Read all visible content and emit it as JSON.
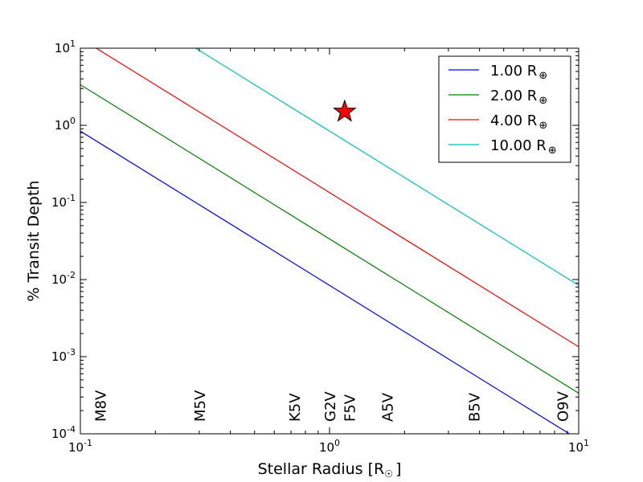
{
  "chart_data": {
    "type": "line",
    "xlabel": "Stellar Radius [R",
    "xlabel_sub": "☉",
    "xlabel_end": "]",
    "ylabel": "% Transit Depth",
    "xscale": "log",
    "yscale": "log",
    "xlim": [
      0.1,
      10
    ],
    "ylim": [
      0.0001,
      10
    ],
    "x_ticks": [
      {
        "value": 0.1,
        "base": "10",
        "exp": "-1"
      },
      {
        "value": 1,
        "base": "10",
        "exp": "0"
      },
      {
        "value": 10,
        "base": "10",
        "exp": "1"
      }
    ],
    "y_ticks": [
      {
        "value": 0.0001,
        "base": "10",
        "exp": "-4"
      },
      {
        "value": 0.001,
        "base": "10",
        "exp": "-3"
      },
      {
        "value": 0.01,
        "base": "10",
        "exp": "-2"
      },
      {
        "value": 0.1,
        "base": "10",
        "exp": "-1"
      },
      {
        "value": 1,
        "base": "10",
        "exp": "0"
      },
      {
        "value": 10,
        "base": "10",
        "exp": "1"
      }
    ],
    "series": [
      {
        "name": "1.00 R",
        "name_sub": "⊕",
        "planet_radius_earth": 1.0,
        "color": "#0000ff",
        "x": [
          0.1,
          10
        ],
        "y": [
          0.84,
          8.41e-05
        ]
      },
      {
        "name": "2.00 R",
        "name_sub": "⊕",
        "planet_radius_earth": 2.0,
        "color": "#008000",
        "x": [
          0.1,
          10
        ],
        "y": [
          3.36,
          0.000336
        ]
      },
      {
        "name": "4.00 R",
        "name_sub": "⊕",
        "planet_radius_earth": 4.0,
        "color": "#ff0000",
        "x": [
          0.1,
          10
        ],
        "y": [
          13.4,
          0.00134
        ]
      },
      {
        "name": "10.00 R",
        "name_sub": "⊕",
        "planet_radius_earth": 10.0,
        "color": "#00bfbf",
        "x": [
          0.1,
          10
        ],
        "y": [
          84.1,
          0.00841
        ]
      }
    ],
    "legend": {
      "placement": "top-right"
    },
    "marker": {
      "shape": "star",
      "x": 1.15,
      "y": 1.5,
      "color": "#ff0000"
    },
    "annotations": [
      {
        "text": "M8V",
        "x": 0.12
      },
      {
        "text": "M5V",
        "x": 0.3
      },
      {
        "text": "K5V",
        "x": 0.72
      },
      {
        "text": "G2V",
        "x": 1.0
      },
      {
        "text": "F5V",
        "x": 1.2
      },
      {
        "text": "A5V",
        "x": 1.7
      },
      {
        "text": "B5V",
        "x": 3.8
      },
      {
        "text": "O9V",
        "x": 8.6
      }
    ],
    "grid": false
  }
}
